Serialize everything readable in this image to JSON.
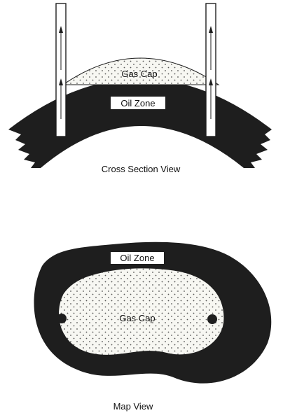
{
  "cross_section": {
    "gas_cap_label": "Gas Cap",
    "oil_zone_label": "Oil Zone",
    "caption": "Cross Section View"
  },
  "map": {
    "oil_zone_label": "Oil Zone",
    "gas_cap_label": "Gas Cap",
    "caption": "Map View"
  },
  "colors": {
    "rock": "#1e1e1e",
    "gas_fill": "#f7f7f2",
    "dots": "#555555",
    "well": "#ffffff"
  }
}
